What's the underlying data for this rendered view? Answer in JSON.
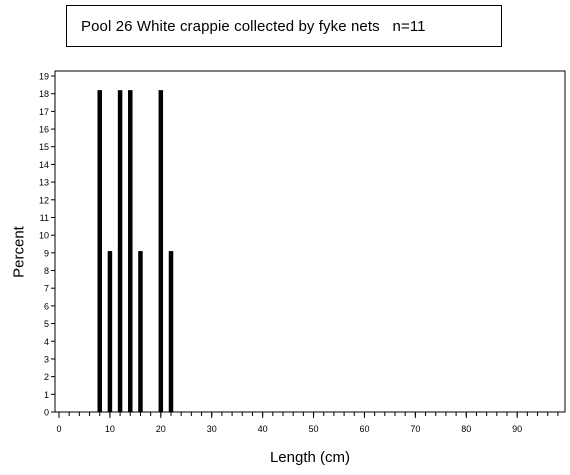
{
  "title": "Pool 26 White crappie collected by fyke nets   n=11",
  "chart_data": {
    "type": "bar",
    "title": "Pool 26 White crappie collected by fyke nets   n=11",
    "xlabel": "Length (cm)",
    "ylabel": "Percent",
    "xlim": [
      0,
      99
    ],
    "ylim": [
      0,
      19
    ],
    "x_ticks": [
      0,
      10,
      20,
      30,
      40,
      50,
      60,
      70,
      80,
      90
    ],
    "y_ticks": [
      0,
      1,
      2,
      3,
      4,
      5,
      6,
      7,
      8,
      9,
      10,
      11,
      12,
      13,
      14,
      15,
      16,
      17,
      18,
      19
    ],
    "x": [
      8,
      10,
      12,
      14,
      16,
      20,
      22
    ],
    "values": [
      18.2,
      9.1,
      18.2,
      18.2,
      9.1,
      18.2,
      9.1
    ],
    "grid": false,
    "legend": "none"
  }
}
